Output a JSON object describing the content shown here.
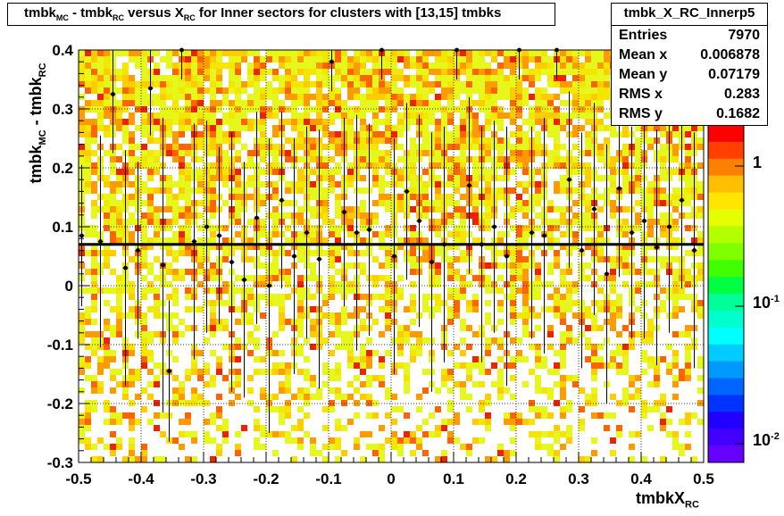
{
  "chart_data": {
    "type": "heatmap",
    "title": {
      "main": "tmbk",
      "sub1": "MC",
      "mid1": " - tmbk",
      "sub2": "RC",
      "mid2": " versus X",
      "sub3": "RC",
      "rest": " for Inner sectors for clusters with [13,15] tmbks"
    },
    "xlabel": {
      "main": "tmbkX",
      "sub": "RC"
    },
    "ylabel": {
      "main": "tmbk",
      "sub1": "MC",
      "mid": " - tmbk",
      "sub2": "RC"
    },
    "xlim": [
      -0.5,
      0.5
    ],
    "ylim": [
      -0.3,
      0.4
    ],
    "x_ticks": [
      "-0.5",
      "-0.4",
      "-0.3",
      "-0.2",
      "-0.1",
      "0",
      "0.1",
      "0.2",
      "0.3",
      "0.4",
      "0.5"
    ],
    "y_ticks": [
      "-0.3",
      "-0.2",
      "-0.1",
      "0",
      "0.1",
      "0.2",
      "0.3",
      "0.4"
    ],
    "grid": true,
    "stats": {
      "name": "tmbk_X_RC_Innerp5",
      "rows": [
        {
          "label": "Entries",
          "value": "7970"
        },
        {
          "label": "Mean x",
          "value": "0.006878"
        },
        {
          "label": "Mean y",
          "value": "0.07179"
        },
        {
          "label": "RMS x",
          "value": "0.283"
        },
        {
          "label": "RMS y",
          "value": "0.1682"
        }
      ]
    },
    "colorbar": {
      "scale": "log",
      "labels": [
        {
          "base": "1",
          "exp": ""
        },
        {
          "base": "10",
          "exp": "-1"
        },
        {
          "base": "10",
          "exp": "-2"
        }
      ]
    },
    "fit_line_y": 0.07,
    "profile_points": [
      {
        "x": -0.495,
        "y": 0.085,
        "err": 0.12
      },
      {
        "x": -0.465,
        "y": 0.075,
        "err": 0.18
      },
      {
        "x": -0.445,
        "y": 0.325,
        "err": 0.1
      },
      {
        "x": -0.425,
        "y": 0.03,
        "err": 0.2
      },
      {
        "x": -0.405,
        "y": 0.06,
        "err": 0.15
      },
      {
        "x": -0.385,
        "y": 0.335,
        "err": 0.08
      },
      {
        "x": -0.365,
        "y": 0.035,
        "err": 0.25
      },
      {
        "x": -0.355,
        "y": -0.145,
        "err": 0.12
      },
      {
        "x": -0.335,
        "y": 0.4,
        "err": 0.05
      },
      {
        "x": -0.315,
        "y": 0.075,
        "err": 0.2
      },
      {
        "x": -0.295,
        "y": 0.1,
        "err": 0.18
      },
      {
        "x": -0.275,
        "y": 0.085,
        "err": 0.15
      },
      {
        "x": -0.255,
        "y": 0.04,
        "err": 0.22
      },
      {
        "x": -0.235,
        "y": 0.01,
        "err": 0.2
      },
      {
        "x": -0.215,
        "y": 0.115,
        "err": 0.18
      },
      {
        "x": -0.195,
        "y": 0.0,
        "err": 0.25
      },
      {
        "x": -0.175,
        "y": 0.145,
        "err": 0.15
      },
      {
        "x": -0.155,
        "y": 0.05,
        "err": 0.2
      },
      {
        "x": -0.135,
        "y": 0.09,
        "err": 0.18
      },
      {
        "x": -0.115,
        "y": 0.045,
        "err": 0.22
      },
      {
        "x": -0.095,
        "y": 0.38,
        "err": 0.05
      },
      {
        "x": -0.075,
        "y": 0.125,
        "err": 0.16
      },
      {
        "x": -0.055,
        "y": 0.09,
        "err": 0.2
      },
      {
        "x": -0.035,
        "y": 0.095,
        "err": 0.18
      },
      {
        "x": -0.015,
        "y": 0.4,
        "err": 0.05
      },
      {
        "x": 0.005,
        "y": 0.05,
        "err": 0.2
      },
      {
        "x": 0.025,
        "y": 0.16,
        "err": 0.15
      },
      {
        "x": 0.045,
        "y": 0.11,
        "err": 0.18
      },
      {
        "x": 0.065,
        "y": 0.04,
        "err": 0.22
      },
      {
        "x": 0.085,
        "y": 0.07,
        "err": 0.2
      },
      {
        "x": 0.105,
        "y": 0.4,
        "err": 0.05
      },
      {
        "x": 0.125,
        "y": 0.17,
        "err": 0.15
      },
      {
        "x": 0.145,
        "y": 0.07,
        "err": 0.2
      },
      {
        "x": 0.165,
        "y": 0.1,
        "err": 0.18
      },
      {
        "x": 0.185,
        "y": 0.05,
        "err": 0.22
      },
      {
        "x": 0.205,
        "y": 0.4,
        "err": 0.05
      },
      {
        "x": 0.225,
        "y": 0.09,
        "err": 0.18
      },
      {
        "x": 0.245,
        "y": 0.085,
        "err": 0.2
      },
      {
        "x": 0.265,
        "y": 0.4,
        "err": 0.05
      },
      {
        "x": 0.285,
        "y": 0.18,
        "err": 0.15
      },
      {
        "x": 0.305,
        "y": 0.06,
        "err": 0.2
      },
      {
        "x": 0.325,
        "y": 0.13,
        "err": 0.18
      },
      {
        "x": 0.345,
        "y": 0.02,
        "err": 0.22
      },
      {
        "x": 0.365,
        "y": 0.165,
        "err": 0.15
      },
      {
        "x": 0.385,
        "y": 0.09,
        "err": 0.18
      },
      {
        "x": 0.405,
        "y": 0.11,
        "err": 0.2
      },
      {
        "x": 0.425,
        "y": 0.065,
        "err": 0.2
      },
      {
        "x": 0.445,
        "y": 0.1,
        "err": 0.18
      },
      {
        "x": 0.465,
        "y": 0.145,
        "err": 0.15
      },
      {
        "x": 0.485,
        "y": 0.06,
        "err": 0.2
      }
    ]
  }
}
